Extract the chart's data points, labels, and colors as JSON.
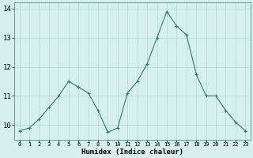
{
  "x": [
    0,
    1,
    2,
    3,
    4,
    5,
    6,
    7,
    8,
    9,
    10,
    11,
    12,
    13,
    14,
    15,
    16,
    17,
    18,
    19,
    20,
    21,
    22,
    23
  ],
  "y": [
    9.8,
    9.9,
    10.2,
    10.6,
    11.0,
    11.5,
    11.3,
    11.1,
    10.5,
    9.75,
    9.9,
    11.1,
    11.5,
    12.1,
    13.0,
    13.9,
    13.4,
    13.1,
    11.75,
    11.0,
    11.0,
    10.5,
    10.1,
    9.8
  ],
  "line_color": "#2e7d6e",
  "marker_color": "#2e7d6e",
  "bg_color": "#d6f0ee",
  "grid_color": "#b0d8d4",
  "xlabel": "Humidex (Indice chaleur)",
  "xlim": [
    -0.5,
    23.5
  ],
  "ylim": [
    9.5,
    14.2
  ],
  "yticks": [
    10,
    11,
    12,
    13,
    14
  ],
  "xticks": [
    0,
    1,
    2,
    3,
    4,
    5,
    6,
    7,
    8,
    9,
    10,
    11,
    12,
    13,
    14,
    15,
    16,
    17,
    18,
    19,
    20,
    21,
    22,
    23
  ],
  "xlabel_fontsize": 6.5,
  "xtick_fontsize": 5.0,
  "ytick_fontsize": 6.5
}
